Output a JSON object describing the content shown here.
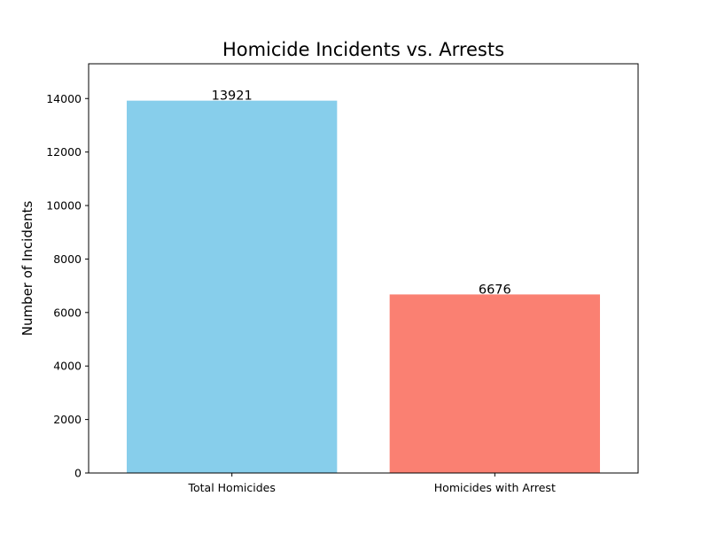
{
  "chart_data": {
    "type": "bar",
    "title": "Homicide Incidents vs. Arrests",
    "xlabel": "",
    "ylabel": "Number of Incidents",
    "categories": [
      "Total Homicides",
      "Homicides with Arrest"
    ],
    "values": [
      13921,
      6676
    ],
    "data_labels": [
      "13921",
      "6676"
    ],
    "colors": [
      "#87ceeb",
      "#fa8072"
    ],
    "ylim": [
      0,
      15300
    ],
    "yticks": [
      0,
      2000,
      4000,
      6000,
      8000,
      10000,
      12000,
      14000
    ],
    "ytick_labels": [
      "0",
      "2000",
      "4000",
      "6000",
      "8000",
      "10000",
      "12000",
      "14000"
    ],
    "grid": false,
    "legend": "none"
  }
}
